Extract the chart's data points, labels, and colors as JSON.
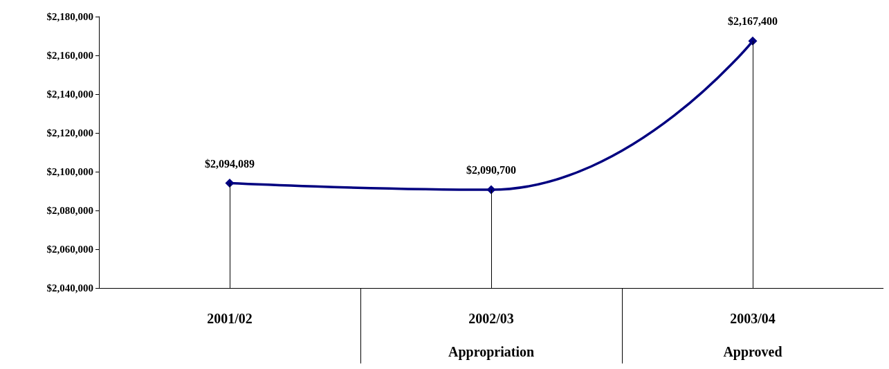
{
  "chart_data": {
    "type": "line",
    "categories": [
      "2001/02",
      "2002/03\n\nAppropriation",
      "2003/04\n\nApproved"
    ],
    "series": [
      {
        "color": "#000080",
        "values": [
          2094089,
          2090700,
          2167400
        ],
        "value_labels": [
          "$2,094,089",
          "$2,090,700",
          "$2,167,400"
        ]
      }
    ],
    "ylim": [
      2040000,
      2180000
    ],
    "yticks": [
      {
        "value": 2040000,
        "label": "$2,040,000"
      },
      {
        "value": 2060000,
        "label": "$2,060,000"
      },
      {
        "value": 2080000,
        "label": "$2,080,000"
      },
      {
        "value": 2100000,
        "label": "$2,100,000"
      },
      {
        "value": 2120000,
        "label": "$2,120,000"
      },
      {
        "value": 2140000,
        "label": "$2,140,000"
      },
      {
        "value": 2160000,
        "label": "$2,160,000"
      },
      {
        "value": 2180000,
        "label": "$2,180,000"
      }
    ],
    "grid": false,
    "marker": "diamond",
    "line_style": "solid"
  }
}
